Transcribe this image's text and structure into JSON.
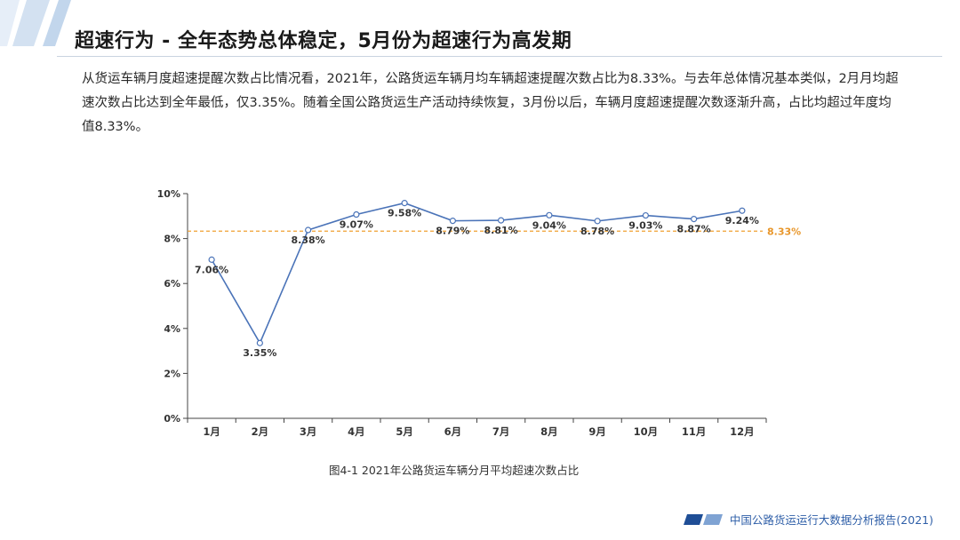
{
  "header": {
    "title": "超速行为 - 全年态势总体稳定，5月份为超速行为高发期"
  },
  "body": {
    "paragraph": "从货运车辆月度超速提醒次数占比情况看，2021年，公路货运车辆月均车辆超速提醒次数占比为8.33%。与去年总体情况基本类似，2月月均超速次数占比达到全年最低，仅3.35%。随着全国公路货运生产活动持续恢复，3月份以后，车辆月度超速提醒次数逐渐升高，占比均超过年度均值8.33%。"
  },
  "chart_data": {
    "type": "line",
    "categories": [
      "1月",
      "2月",
      "3月",
      "4月",
      "5月",
      "6月",
      "7月",
      "8月",
      "9月",
      "10月",
      "11月",
      "12月"
    ],
    "series": [
      {
        "values": [
          7.06,
          3.35,
          8.38,
          9.07,
          9.58,
          8.79,
          8.81,
          9.04,
          8.78,
          9.03,
          8.87,
          9.24
        ]
      }
    ],
    "data_labels": [
      "7.06%",
      "3.35%",
      "8.38%",
      "9.07%",
      "9.58%",
      "8.79%",
      "8.81%",
      "9.04%",
      "8.78%",
      "9.03%",
      "8.87%",
      "9.24%"
    ],
    "y_ticks": [
      0,
      2,
      4,
      6,
      8,
      10
    ],
    "y_tick_labels": [
      "0%",
      "2%",
      "4%",
      "6%",
      "8%",
      "10%"
    ],
    "ylim": [
      0,
      10
    ],
    "reference_line": {
      "value": 8.33,
      "label": "8.33%"
    },
    "grid": false,
    "colors": {
      "line": "#4a73b8",
      "reference": "#f0a030",
      "reference_label": "#e8962a"
    }
  },
  "caption": "图4-1 2021年公路货运车辆分月平均超速次数占比",
  "footer": {
    "text": "中国公路货运运行大数据分析报告(2021)"
  },
  "colors": {
    "accent": "#2f5fa8",
    "deco_light": "#dbe6f3",
    "deco_mid": "#a9c2e0"
  }
}
